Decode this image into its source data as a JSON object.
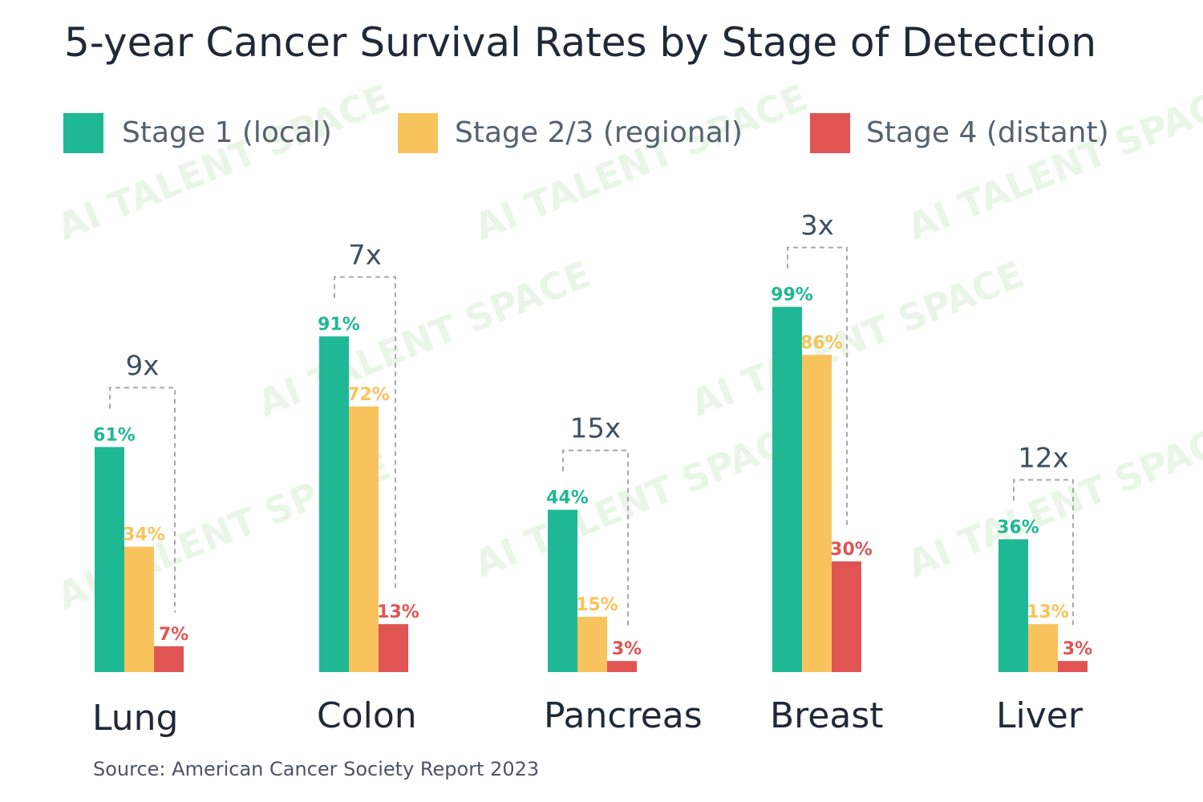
{
  "chart_data": {
    "type": "bar",
    "title": "5-year Cancer Survival Rates by Stage of Detection",
    "categories": [
      "Lung",
      "Colon",
      "Pancreas",
      "Breast",
      "Liver"
    ],
    "series": [
      {
        "name": "Stage 1 (local)",
        "color": "#1fb894",
        "values": [
          61,
          91,
          44,
          99,
          36
        ],
        "labels": [
          "61%",
          "91%",
          "44%",
          "99%",
          "36%"
        ]
      },
      {
        "name": "Stage 2/3 (regional)",
        "color": "#f8c35c",
        "values": [
          34,
          72,
          15,
          86,
          13
        ],
        "labels": [
          "34%",
          "72%",
          "15%",
          "86%",
          "13%"
        ]
      },
      {
        "name": "Stage 4 (distant)",
        "color": "#e15454",
        "values": [
          7,
          13,
          3,
          30,
          3
        ],
        "labels": [
          "7%",
          "13%",
          "3%",
          "30%",
          "3%"
        ]
      }
    ],
    "multipliers": [
      "9x",
      "7x",
      "15x",
      "3x",
      "12x"
    ],
    "ylim": [
      0,
      100
    ],
    "grid": false,
    "legend": "top",
    "source": "Source: American Cancer Society Report 2023",
    "watermark": "AI TALENT SPACE"
  }
}
